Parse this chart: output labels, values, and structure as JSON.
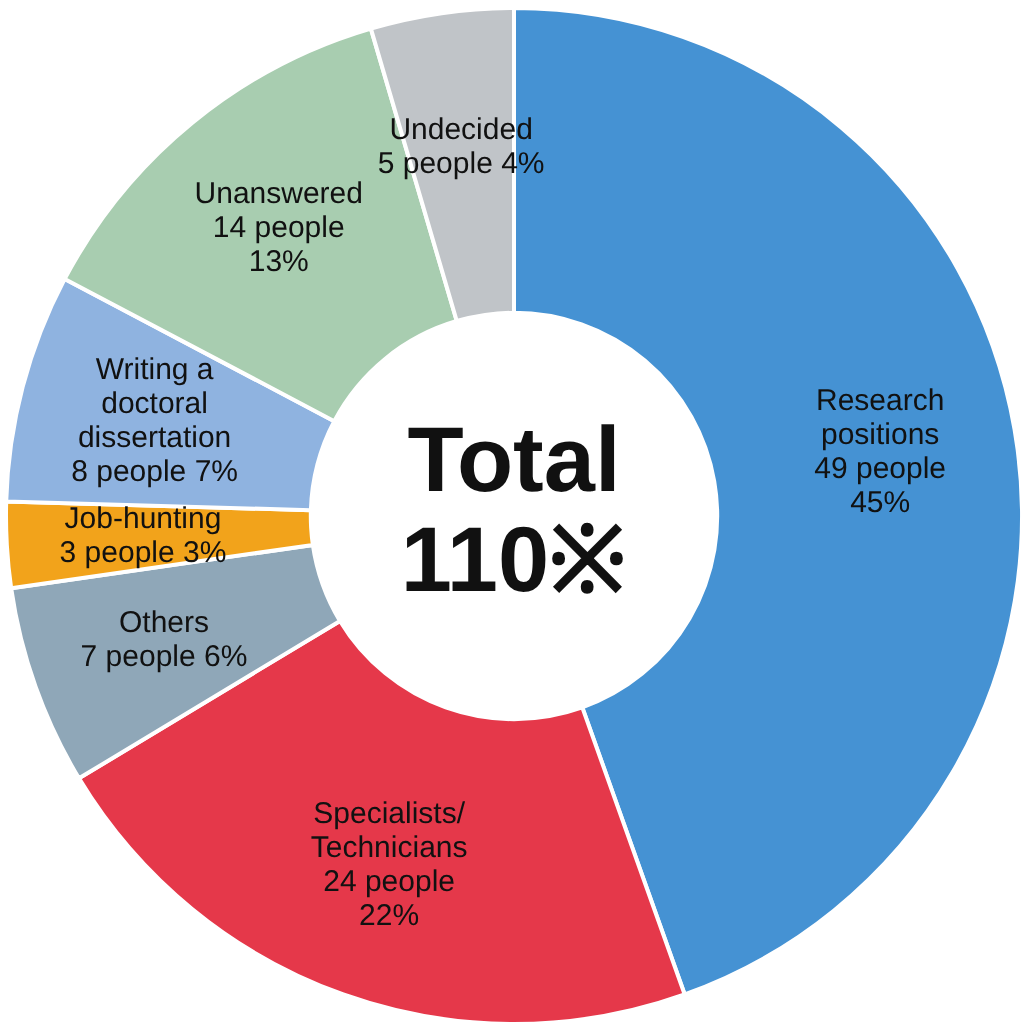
{
  "chart_data": {
    "type": "donut",
    "categories": [
      "Research positions",
      "Specialists/ Technicians",
      "Others",
      "Job-hunting",
      "Writing a doctoral dissertation",
      "Unanswered",
      "Undecided"
    ],
    "values": [
      49,
      24,
      7,
      3,
      8,
      14,
      5
    ],
    "value_labels": [
      "49 people 45%",
      "24 people 22%",
      "7 people 6%",
      "3 people 3%",
      "8 people 7%",
      "14 people 13%",
      "5 people 4%"
    ],
    "colors": [
      "#4592d3",
      "#e5384a",
      "#8fa7b8",
      "#f2a31b",
      "#8fb3e0",
      "#a8cdb0",
      "#c0c4c8"
    ],
    "annotations": [
      "Total",
      "110※"
    ]
  }
}
